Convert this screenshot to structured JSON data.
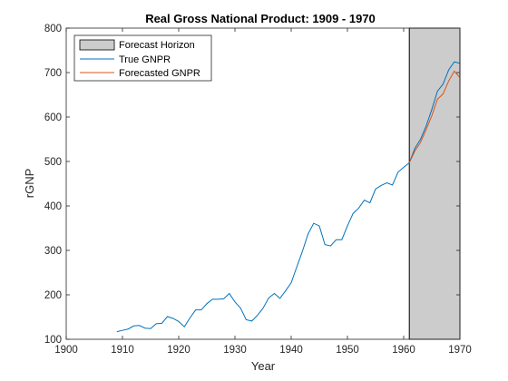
{
  "chart_data": {
    "type": "line",
    "title": "Real Gross National Product: 1909 - 1970",
    "xlabel": "Year",
    "ylabel": "rGNP",
    "xlim": [
      1900,
      1970
    ],
    "ylim": [
      100,
      800
    ],
    "xticks": [
      1900,
      1910,
      1920,
      1930,
      1940,
      1950,
      1960,
      1970
    ],
    "yticks": [
      100,
      200,
      300,
      400,
      500,
      600,
      700,
      800
    ],
    "legend_position": "top-left",
    "forecast_horizon": {
      "name": "Forecast Horizon",
      "x_start": 1961,
      "x_end": 1970,
      "color": "#cccccc"
    },
    "series": [
      {
        "name": "True GNPR",
        "color": "#0072bd",
        "x": [
          1909,
          1910,
          1911,
          1912,
          1913,
          1914,
          1915,
          1916,
          1917,
          1918,
          1919,
          1920,
          1921,
          1922,
          1923,
          1924,
          1925,
          1926,
          1927,
          1928,
          1929,
          1930,
          1931,
          1932,
          1933,
          1934,
          1935,
          1936,
          1937,
          1938,
          1939,
          1940,
          1941,
          1942,
          1943,
          1944,
          1945,
          1946,
          1947,
          1948,
          1949,
          1950,
          1951,
          1952,
          1953,
          1954,
          1955,
          1956,
          1957,
          1958,
          1959,
          1960,
          1961,
          1962,
          1963,
          1964,
          1965,
          1966,
          1967,
          1968,
          1969,
          1970
        ],
        "y": [
          117,
          120,
          123,
          130,
          131,
          125,
          124,
          135,
          136,
          151,
          147,
          140,
          128,
          148,
          166,
          166,
          180,
          190,
          190,
          191,
          203,
          184,
          170,
          144,
          141,
          154,
          170,
          193,
          203,
          192,
          209,
          227,
          263,
          298,
          337,
          361,
          355,
          313,
          310,
          324,
          324,
          355,
          383,
          395,
          413,
          407,
          438,
          446,
          452,
          447,
          476,
          487,
          497,
          530,
          550,
          580,
          617,
          658,
          674,
          706,
          724,
          721
        ]
      },
      {
        "name": "Forecasted GNPR",
        "color": "#d95319",
        "x": [
          1961,
          1962,
          1963,
          1964,
          1965,
          1966,
          1967,
          1968,
          1969,
          1970
        ],
        "y": [
          497,
          524,
          543,
          572,
          603,
          640,
          652,
          681,
          703,
          689
        ]
      }
    ]
  }
}
